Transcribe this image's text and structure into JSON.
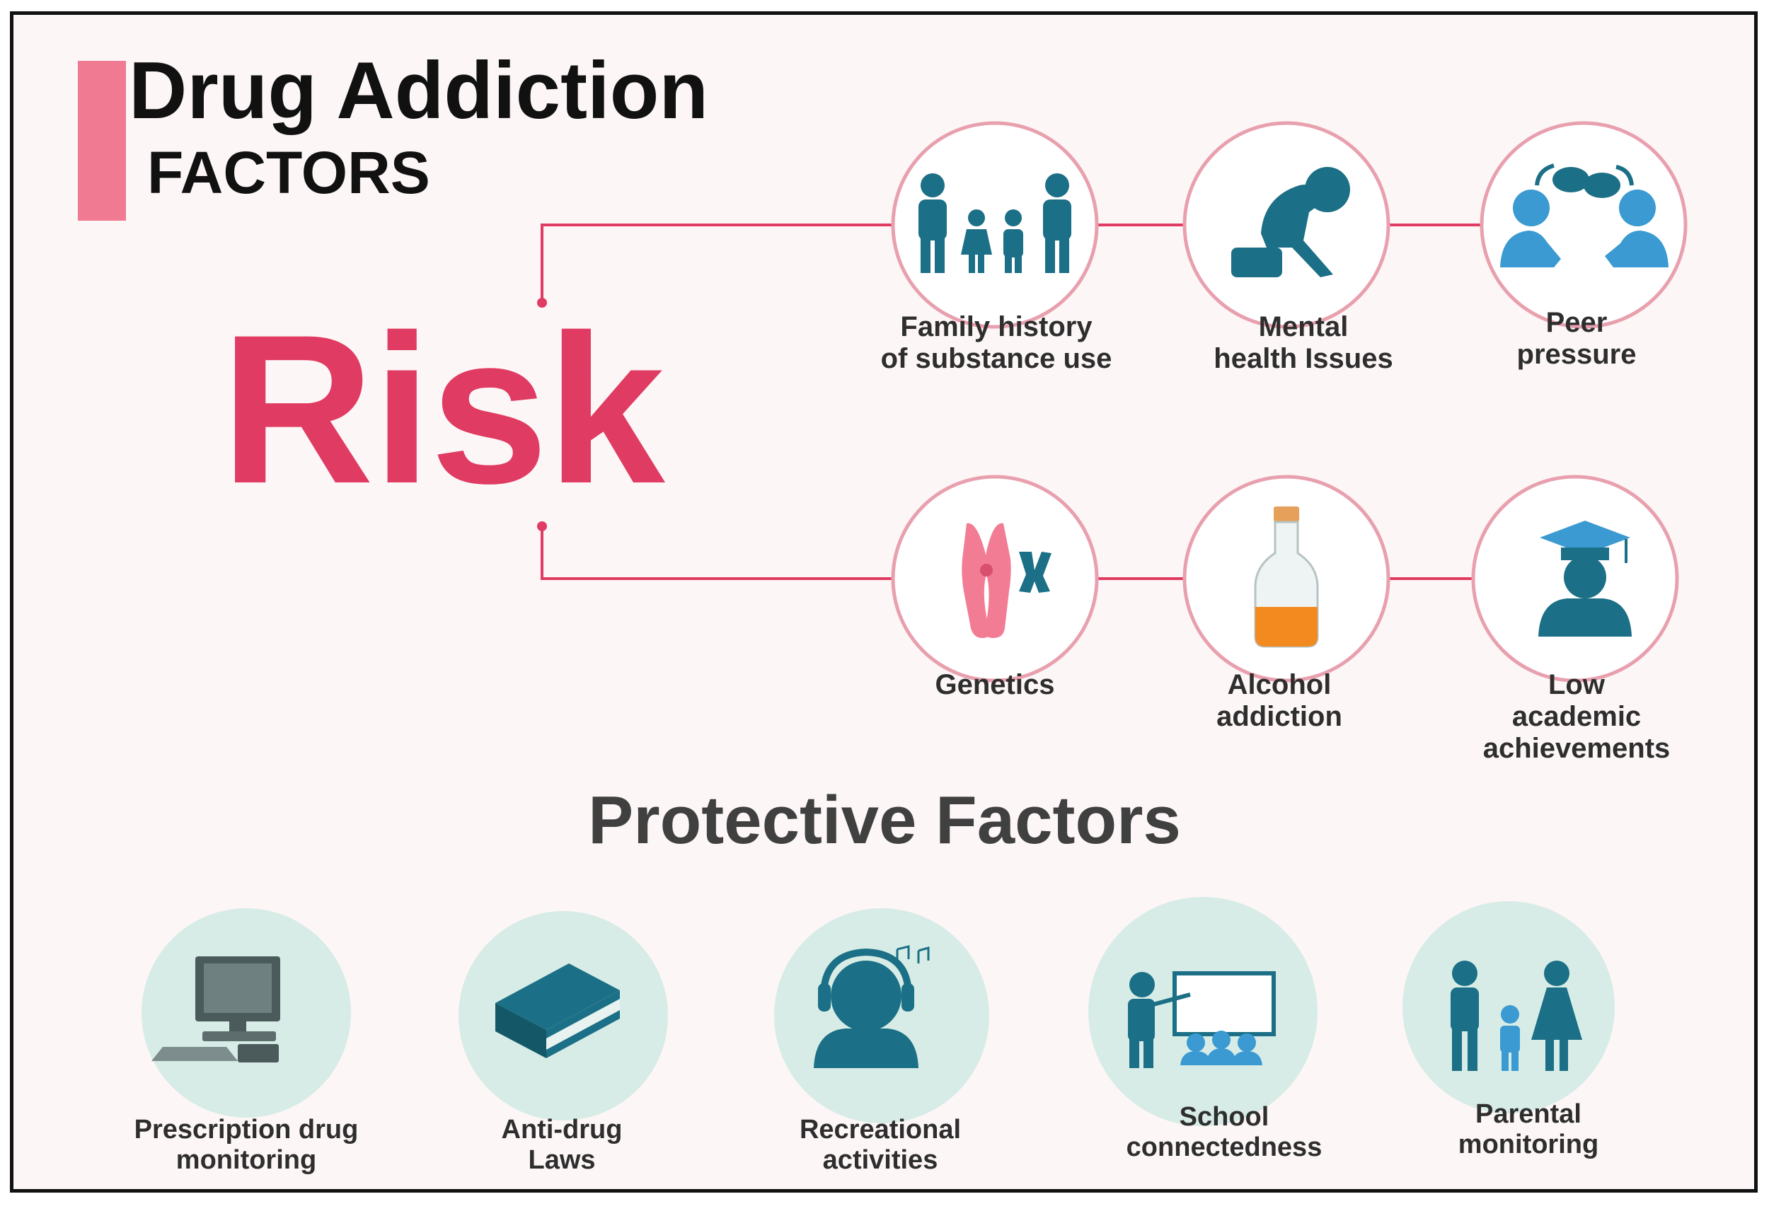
{
  "title": {
    "main": "Drug Addiction",
    "sub": "FACTORS"
  },
  "risk": {
    "heading": "Risk",
    "items": [
      {
        "icon": "family-icon",
        "lines": [
          "Family history",
          "of substance use"
        ]
      },
      {
        "icon": "distressed-person-icon",
        "lines": [
          "Mental",
          "health Issues"
        ]
      },
      {
        "icon": "peer-conversation-icon",
        "lines": [
          "Peer",
          "pressure"
        ]
      },
      {
        "icon": "chromosome-icon",
        "lines": [
          "Genetics"
        ]
      },
      {
        "icon": "alcohol-bottle-icon",
        "lines": [
          "Alcohol",
          "addiction"
        ]
      },
      {
        "icon": "graduate-icon",
        "lines": [
          "Low",
          "academic",
          "achievements"
        ]
      }
    ]
  },
  "protective": {
    "heading": "Protective Factors",
    "items": [
      {
        "icon": "computer-icon",
        "lines": [
          "Prescription drug",
          "monitoring"
        ]
      },
      {
        "icon": "book-icon",
        "lines": [
          "Anti-drug",
          "Laws"
        ]
      },
      {
        "icon": "headphones-person-icon",
        "lines": [
          "Recreational",
          "activities"
        ]
      },
      {
        "icon": "teacher-classroom-icon",
        "lines": [
          "School",
          "connectedness"
        ]
      },
      {
        "icon": "parents-child-icon",
        "lines": [
          "Parental",
          "monitoring"
        ]
      }
    ]
  },
  "colors": {
    "accent": "#e03b62",
    "accent_light": "#f07a92",
    "line": "#e8a0ae",
    "icon_teal": "#1b6f86",
    "icon_blue": "#3a9ad1",
    "protective_circle": "#d7ece6",
    "frame": "#111111"
  }
}
